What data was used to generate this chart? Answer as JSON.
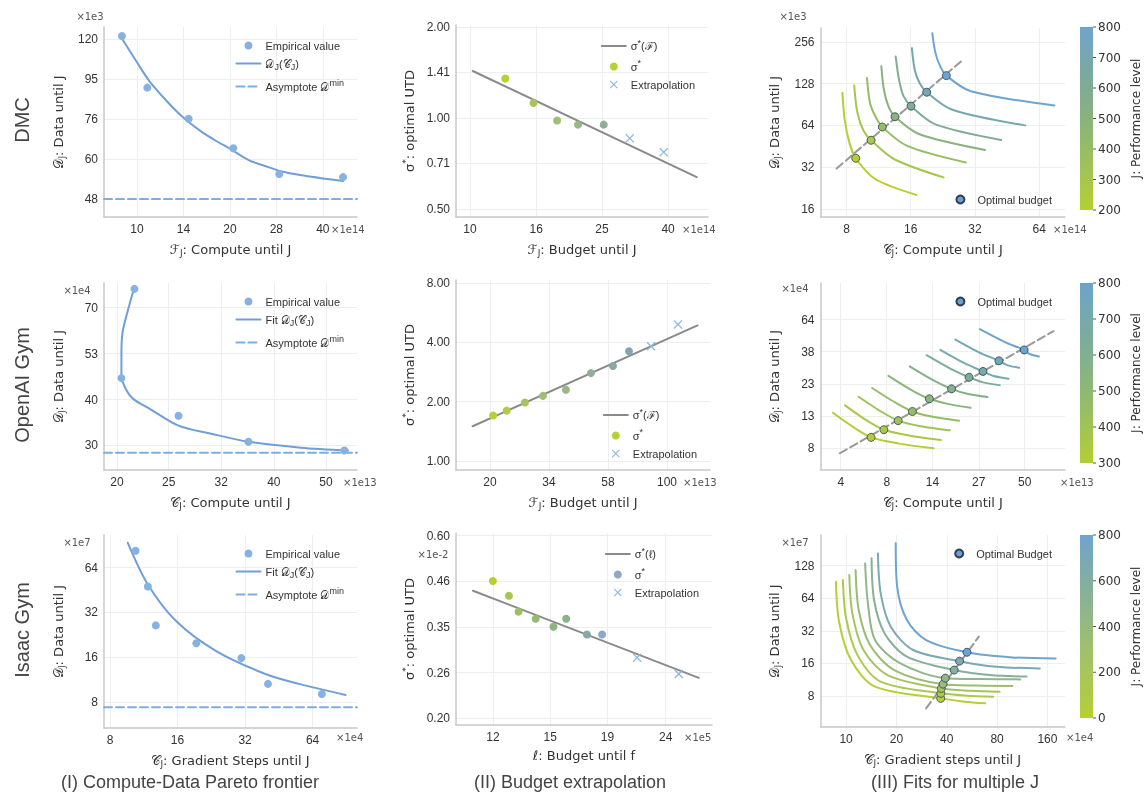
{
  "chart_data": [
    {
      "type": "scatter",
      "xlabel": "ℱ$_{J}$: Compute until J",
      "ylabel": "𝒟$_{J}$: Data until J",
      "annotations": [
        "×1e14",
        "×1e3",
        "DMC"
      ],
      "log": "xy",
      "grid": true,
      "legend": "top right",
      "xlim": [
        7.82,
        51.6
      ],
      "xticks": [
        10,
        {
          "value": 14.14,
          "label": "14"
        },
        20,
        {
          "value": 28.28,
          "label": "28"
        },
        40
      ],
      "ylim": [
        43.3,
        128.5
      ],
      "yticks": [
        48,
        {
          "value": 60.3,
          "label": "60"
        },
        {
          "value": 75.9,
          "label": "76"
        },
        {
          "value": 95.4,
          "label": "95"
        },
        120
      ],
      "series": [
        {
          "name": "Empirical value",
          "marker": "circle",
          "color": "#86b1e0",
          "x": [
            8.94,
            10.8,
            14.7,
            20.5,
            28.9,
            46.5
          ],
          "values": [
            122,
            90.8,
            76,
            64.2,
            55.4,
            54.4
          ]
        },
        {
          "name": "𝒟$_{J}$(𝒞$_{J}$)",
          "type": "line",
          "color": "#6f9fd6",
          "x": [
            8.9,
            10,
            11,
            12.5,
            14,
            16,
            18,
            20,
            23,
            26,
            30,
            35,
            40,
            46.5
          ],
          "values": [
            121,
            105,
            94,
            84,
            77,
            71,
            67,
            64,
            60,
            58,
            56,
            54.8,
            54,
            53.2
          ]
        },
        {
          "name": "Asymptote 𝒟$^{min}$",
          "type": "line",
          "line_style": "dashed",
          "color": "#7eaee0",
          "x": [
            7.82,
            51.6
          ],
          "values": [
            48,
            48
          ]
        }
      ]
    },
    {
      "type": "scatter",
      "xlabel": "ℱ$_{J}$: Budget until J",
      "ylabel": "σ$^{*}$: optimal UTD",
      "annotations": [
        "×1e14"
      ],
      "log": "xy",
      "grid": true,
      "legend": "top right",
      "xlim": [
        9.07,
        52.9
      ],
      "xticks": [
        10,
        {
          "value": 15.9,
          "label": "16"
        },
        {
          "value": 25.2,
          "label": "25"
        },
        40
      ],
      "ylim": [
        0.47,
        2.03
      ],
      "yticks": [
        {
          "value": 0.5,
          "label": "0.50"
        },
        {
          "value": 0.707,
          "label": "0.71"
        },
        {
          "value": 1,
          "label": "1.00"
        },
        {
          "value": 1.414,
          "label": "1.41"
        },
        {
          "value": 2,
          "label": "2.00"
        }
      ],
      "series": [
        {
          "name": "σ$^{*}$(ℱ)",
          "type": "line",
          "color": "#8a8a8a",
          "x": [
            10.2,
            48.9
          ],
          "values": [
            1.43,
            0.637
          ]
        },
        {
          "name": "σ$^{*}$",
          "marker": "circle",
          "color": "#b7d033",
          "colors": [
            "#b7d033",
            "#a9c559",
            "#a1bf73",
            "#98b686",
            "#8fae99"
          ],
          "x": [
            12.8,
            15.6,
            18.4,
            21.3,
            25.5
          ],
          "values": [
            1.35,
            1.12,
            0.98,
            0.95,
            0.95
          ]
        },
        {
          "name": "Extrapolation",
          "marker": "cross",
          "color": "#8fb8dc",
          "x": [
            30.6,
            38.8
          ],
          "values": [
            0.856,
            0.77
          ]
        }
      ]
    },
    {
      "type": "line",
      "xlabel": "𝒞$_{J}$: Compute until J",
      "ylabel": "𝒟$_{J}$: Data until J",
      "clabel": "J: Performance level",
      "annotations": [
        "×1e14",
        "×1e3"
      ],
      "log": "xy",
      "grid": true,
      "legend": "bottom right",
      "xlim": [
        6.04,
        84.6
      ],
      "xticks": [
        8,
        16,
        32,
        64
      ],
      "ylim": [
        14.0,
        322
      ],
      "yticks": [
        16,
        32,
        64,
        128,
        256
      ],
      "clim": [
        200,
        800
      ],
      "cticks": [
        200,
        300,
        400,
        500,
        600,
        700,
        800
      ],
      "series": [
        {
          "color": "#b5cf2f",
          "x": [
            7.65,
            7.84,
            8.25,
            8.84,
            10.9,
            17.0
          ],
          "values": [
            109.8,
            70.7,
            48.1,
            37.1,
            26.3,
            20.2
          ]
        },
        {
          "color": "#a6c64d",
          "x": [
            8.69,
            9.0,
            9.63,
            10.43,
            13.4,
            22.8
          ],
          "values": [
            123.9,
            78.9,
            58.3,
            50.0,
            36.5,
            27.0
          ]
        },
        {
          "color": "#97bc66",
          "x": [
            9.98,
            10.3,
            10.9,
            11.77,
            15.4,
            29.0
          ],
          "values": [
            140.5,
            93.1,
            74.7,
            62.3,
            45.5,
            34.6
          ]
        },
        {
          "color": "#8ab27d",
          "x": [
            11.65,
            11.97,
            12.57,
            13.5,
            17.6,
            35.7
          ],
          "values": [
            170.4,
            116,
            88.1,
            73.9,
            55.2,
            42.6
          ]
        },
        {
          "color": "#80ab94",
          "x": [
            13.6,
            14.1,
            14.8,
            16.05,
            20.9,
            42.5
          ],
          "values": [
            201,
            136.7,
            103.9,
            88.1,
            65.1,
            50.3
          ]
        },
        {
          "color": "#77a7ae",
          "x": [
            16.2,
            16.7,
            17.6,
            19.0,
            24.9,
            55.0
          ],
          "values": [
            230.6,
            161.3,
            129.4,
            111,
            83.4,
            64.0
          ]
        },
        {
          "color": "#6ea4cf",
          "x": [
            20.2,
            20.9,
            22.0,
            23.5,
            30.6,
            75.5
          ],
          "values": [
            295,
            212.3,
            170.4,
            146.1,
            112.8,
            89.1
          ]
        },
        {
          "line_style": "dashed",
          "color": "#999999",
          "x": [
            7.19,
            28.1
          ],
          "values": [
            31.3,
            190
          ]
        },
        {
          "name": "Optimal budget",
          "type": "scatter",
          "marker": "circle",
          "color": "#6d9fd0",
          "colors": [
            "#b5cf2f",
            "#a6c64d",
            "#97bc66",
            "#8ab27d",
            "#80ab94",
            "#77a7ae",
            "#6ea4cf"
          ],
          "x": [
            8.84,
            10.43,
            11.77,
            13.5,
            16.05,
            19.0,
            23.5
          ],
          "values": [
            37.1,
            50.0,
            62.3,
            73.9,
            88.1,
            111,
            146.1
          ]
        }
      ]
    },
    {
      "type": "scatter",
      "xlabel": "𝒞$_{J}$: Compute until J",
      "ylabel": "𝒟$_{J}$: Data until J",
      "annotations": [
        "×1e13",
        "×1e4",
        "OpenAI Gym"
      ],
      "log": "xy",
      "grid": true,
      "legend": "top right",
      "xlim": [
        18.9,
        57.3
      ],
      "xticks": [
        20,
        {
          "value": 25.1,
          "label": "25"
        },
        {
          "value": 31.6,
          "label": "32"
        },
        {
          "value": 39.8,
          "label": "40"
        },
        50
      ],
      "ylim": [
        25.8,
        81.5
      ],
      "yticks": [
        30,
        {
          "value": 39.8,
          "label": "40"
        },
        {
          "value": 52.8,
          "label": "53"
        },
        70
      ],
      "series": [
        {
          "name": "Empirical value",
          "marker": "circle",
          "color": "#86b1e0",
          "x": [
            21.6,
            20.4,
            26.2,
            35.6,
            54.2
          ],
          "values": [
            78.6,
            45.4,
            36.0,
            30.7,
            29.1
          ]
        },
        {
          "name": "Fit 𝒟$_{J}$(𝒞$_{J}$)",
          "type": "line",
          "color": "#6f9fd6",
          "x": [
            21.6,
            21.0,
            20.5,
            20.4,
            20.4,
            20.8,
            21.5,
            23.1,
            26.2,
            30.1,
            35.6,
            44.8,
            55.1
          ],
          "values": [
            79.5,
            69.1,
            60.1,
            52.5,
            46.5,
            42.4,
            39.9,
            37.6,
            33.9,
            32.3,
            30.7,
            29.6,
            29.1
          ]
        },
        {
          "name": "Asymptote 𝒟$^{min}$",
          "type": "line",
          "line_style": "dashed",
          "color": "#7eaee0",
          "x": [
            18.9,
            57.3
          ],
          "values": [
            28.7,
            28.7
          ]
        }
      ]
    },
    {
      "type": "scatter",
      "xlabel": "ℱ$_{J}$: Budget until J",
      "ylabel": "σ$^{*}$: optimal UTD",
      "annotations": [
        "×1e13"
      ],
      "log": "xy",
      "grid": true,
      "legend": "bottom right",
      "xlim": [
        14.7,
        147.8
      ],
      "xticks": [
        20,
        {
          "value": 34.2,
          "label": "34"
        },
        {
          "value": 58.5,
          "label": "58"
        },
        100
      ],
      "ylim": [
        0.9,
        8.28
      ],
      "yticks": [
        {
          "value": 1,
          "label": "1.00"
        },
        {
          "value": 2,
          "label": "2.00"
        },
        {
          "value": 4,
          "label": "4.00"
        },
        {
          "value": 8,
          "label": "8.00"
        }
      ],
      "series": [
        {
          "name": "σ$^{*}$(ℱ)",
          "type": "line",
          "color": "#8a8a8a",
          "x": [
            17.1,
            132
          ],
          "values": [
            1.5,
            4.87
          ]
        },
        {
          "name": "σ$^{*}$",
          "marker": "circle",
          "color": "#b8d034",
          "colors": [
            "#b8d034",
            "#b0ca4a",
            "#a7c460",
            "#a0bd72",
            "#98b784",
            "#90b094",
            "#88aaa3",
            "#82a6ae"
          ],
          "x": [
            20.6,
            23.3,
            27.5,
            32.4,
            39.9,
            50.1,
            61.2,
            70.8
          ],
          "values": [
            1.7,
            1.8,
            1.98,
            2.14,
            2.3,
            2.79,
            3.03,
            3.6
          ]
        },
        {
          "name": "Extrapolation",
          "marker": "cross",
          "color": "#8db6de",
          "x": [
            86.5,
            110.5
          ],
          "values": [
            3.82,
            4.93
          ]
        }
      ]
    },
    {
      "type": "line",
      "xlabel": "𝒞$_{J}$: Compute until J",
      "ylabel": "𝒟$_{J}$: Data until J",
      "clabel": "J: Performance level",
      "annotations": [
        "×1e13",
        "×1e4"
      ],
      "log": "xy",
      "grid": true,
      "legend": "top right",
      "xlim": [
        3.03,
        86.9
      ],
      "xticks": [
        4,
        {
          "value": 7.52,
          "label": "8"
        },
        {
          "value": 14.1,
          "label": "14"
        },
        {
          "value": 26.6,
          "label": "27"
        },
        50
      ],
      "ylim": [
        5.63,
        115.7
      ],
      "yticks": [
        8,
        {
          "value": 13.5,
          "label": "13"
        },
        {
          "value": 22.6,
          "label": "23"
        },
        {
          "value": 38.1,
          "label": "38"
        },
        64
      ],
      "clim": [
        300,
        800
      ],
      "cticks": [
        300,
        400,
        500,
        600,
        700,
        800
      ],
      "series": [
        {
          "color": "#b3ce33",
          "x": [
            3.59,
            4.79,
            6.07,
            8.77,
            14.3
          ],
          "values": [
            14.2,
            11.2,
            9.54,
            8.66,
            8.0
          ]
        },
        {
          "color": "#a9c845",
          "x": [
            4.24,
            5.68,
            7.23,
            10.2,
            15.8
          ],
          "values": [
            16.0,
            12.6,
            10.8,
            9.84,
            9.14
          ]
        },
        {
          "color": "#9fc257",
          "x": [
            5.11,
            6.89,
            8.8,
            12.0,
            17.9
          ],
          "values": [
            18.4,
            14.6,
            12.5,
            11.4,
            10.7
          ]
        },
        {
          "color": "#95bc69",
          "x": [
            6.15,
            8.35,
            10.7,
            14.1,
            20.3
          ],
          "values": [
            21.2,
            16.9,
            14.5,
            13.3,
            12.5
          ]
        },
        {
          "color": "#8bb67b",
          "x": [
            7.7,
            10.5,
            13.5,
            17.3,
            23.8
          ],
          "values": [
            25.8,
            20.6,
            17.8,
            16.4,
            15.4
          ]
        },
        {
          "color": "#84b18a",
          "x": [
            10.3,
            14.2,
            18.3,
            22.7,
            30.0
          ],
          "values": [
            30.1,
            24.1,
            20.9,
            19.3,
            18.3
          ]
        },
        {
          "color": "#7dad99",
          "x": [
            13.0,
            18.0,
            23.3,
            27.9,
            35.5
          ],
          "values": [
            36.0,
            29.0,
            25.2,
            23.3,
            22.2
          ]
        },
        {
          "color": "#77aaa8",
          "x": [
            15.7,
            21.7,
            28.2,
            32.7,
            40.0
          ],
          "values": [
            39.3,
            31.8,
            27.7,
            25.7,
            24.6
          ]
        },
        {
          "color": "#72a7b8",
          "x": [
            19.3,
            26.9,
            35.1,
            39.2,
            46.3
          ],
          "values": [
            46.4,
            37.6,
            32.9,
            30.7,
            29.4
          ]
        },
        {
          "color": "#6ca3cf",
          "x": [
            27.0,
            37.8,
            49.6,
            53.4,
            60.8
          ],
          "values": [
            54.8,
            44.7,
            39.2,
            36.7,
            35.3
          ]
        },
        {
          "line_style": "dashed",
          "color": "#999999",
          "x": [
            3.95,
            74.2
          ],
          "values": [
            7.38,
            53.1
          ]
        },
        {
          "name": "Optimal budget",
          "type": "scatter",
          "marker": "circle",
          "color": "#6d9fd0",
          "colors": [
            "#b3ce33",
            "#a9c845",
            "#9fc257",
            "#95bc69",
            "#8bb67b",
            "#84b18a",
            "#7dad99",
            "#77aaa8",
            "#72a7b8",
            "#6ca3cf"
          ],
          "x": [
            6.07,
            7.23,
            8.8,
            10.7,
            13.5,
            18.3,
            23.3,
            28.2,
            35.1,
            49.6
          ],
          "values": [
            9.54,
            10.8,
            12.5,
            14.5,
            17.8,
            20.9,
            25.2,
            27.7,
            32.9,
            39.2
          ]
        }
      ]
    },
    {
      "type": "scatter",
      "xlabel": "𝒞$_{J}$: Gradient Steps until J",
      "ylabel": "𝒟$_{J}$: Data until J",
      "annotations": [
        "×1e4",
        "×1e7",
        "Isaac Gym",
        "(I) Compute-Data Pareto frontier"
      ],
      "log": "xy",
      "grid": true,
      "legend": "top right",
      "xlim": [
        7.52,
        101
      ],
      "xticks": [
        8,
        16,
        32,
        64
      ],
      "ylim": [
        5.36,
        106
      ],
      "yticks": [
        8,
        16,
        32,
        64
      ],
      "series": [
        {
          "name": "Empirical value",
          "marker": "circle",
          "color": "#86b1e0",
          "x": [
            10.4,
            11.8,
            12.8,
            19.4,
            30.8,
            40.5,
            70.4
          ],
          "values": [
            83,
            47.8,
            26.2,
            19.9,
            15.8,
            10.6,
            9.07
          ]
        },
        {
          "name": "Fit 𝒟$_{J}$(𝒞$_{J}$)",
          "type": "line",
          "color": "#6f9fd6",
          "x": [
            9.6,
            11.8,
            15.8,
            23.8,
            39.7,
            55.6,
            89.8
          ],
          "values": [
            94,
            49.3,
            27.9,
            17.6,
            12.3,
            10.6,
            8.94
          ]
        },
        {
          "name": "Asymptote 𝒟$^{min}$",
          "type": "line",
          "line_style": "dashed",
          "color": "#7eaee0",
          "x": [
            7.52,
            101
          ],
          "values": [
            7.4,
            7.4
          ]
        }
      ]
    },
    {
      "type": "scatter",
      "xlabel": "ℓ: Budget until f",
      "ylabel": "σ$^{*}$: optimal UTD",
      "annotations": [
        "×1e5",
        "×1e-2",
        "(II) Budget extrapolation"
      ],
      "log": "xy",
      "grid": true,
      "legend": "top right",
      "xlim": [
        10.35,
        28.9
      ],
      "xticks": [
        12,
        {
          "value": 15.1,
          "label": "15"
        },
        {
          "value": 19.0,
          "label": "19"
        },
        24
      ],
      "ylim": [
        0.192,
        0.61
      ],
      "yticks": [
        {
          "value": 0.2,
          "label": "0.20"
        },
        {
          "value": 0.263,
          "label": "0.26"
        },
        {
          "value": 0.346,
          "label": "0.35"
        },
        {
          "value": 0.456,
          "label": "0.46"
        },
        {
          "value": 0.6,
          "label": "0.60"
        }
      ],
      "series": [
        {
          "name": "σ$^{*}$(ℓ)",
          "type": "line",
          "color": "#8a8a8a",
          "x": [
            11.08,
            27.4
          ],
          "values": [
            0.431,
            0.255
          ]
        },
        {
          "name": "σ$^{*}$",
          "marker": "circle",
          "color": "#8ea8c8",
          "colors": [
            "#b5cf2f",
            "#a8c64c",
            "#9dbd66",
            "#98b973",
            "#8fb384",
            "#8cb188",
            "#86a8a8",
            "#8ea8c8"
          ],
          "x": [
            12.0,
            12.8,
            13.3,
            14.25,
            15.3,
            16.1,
            17.5,
            18.6
          ],
          "values": [
            0.457,
            0.418,
            0.38,
            0.364,
            0.347,
            0.364,
            0.331,
            0.331
          ]
        },
        {
          "name": "Extrapolation",
          "marker": "cross",
          "color": "#8db6de",
          "x": [
            21.4,
            25.3
          ],
          "values": [
            0.288,
            0.261
          ]
        }
      ]
    },
    {
      "type": "line",
      "xlabel": "𝒞$_{J}$: Gradient steps until J",
      "ylabel": "𝒟$_{J}$: Data until J",
      "clabel": "J: Performance level",
      "annotations": [
        "×1e4",
        "×1e7",
        "(III) Fits for multiple J"
      ],
      "log": "xy",
      "grid": true,
      "legend": "top right",
      "xlim": [
        7.03,
        203.7
      ],
      "xticks": [
        10,
        20,
        40,
        80,
        160
      ],
      "ylim": [
        4.14,
        246
      ],
      "yticks": [
        8,
        16,
        32,
        64,
        128
      ],
      "clim": [
        0,
        800
      ],
      "cticks": [
        0,
        200,
        400,
        600,
        800
      ],
      "series": [
        {
          "color": "#b6cf34",
          "x": [
            8.69,
            9.08,
            10.7,
            14.9,
            36.8,
            51.0,
            67.9
          ],
          "values": [
            91.2,
            38.9,
            17.2,
            9.76,
            7.61,
            7.09,
            6.85
          ]
        },
        {
          "color": "#adc94c",
          "x": [
            9.57,
            10.0,
            11.7,
            16.2,
            36.9,
            53.3,
            75.8
          ],
          "values": [
            94.4,
            41.8,
            19.1,
            10.8,
            8.47,
            8.06,
            7.89
          ]
        },
        {
          "color": "#a5c461",
          "x": [
            10.45,
            10.9,
            12.7,
            17.7,
            37.1,
            55.7,
            82.8
          ],
          "values": [
            105,
            46.4,
            21.3,
            12.5,
            9.4,
            8.96,
            8.77
          ]
        },
        {
          "color": "#9bbd73",
          "x": [
            11.4,
            11.9,
            13.9,
            19.4,
            38.0,
            60.8,
            98.7
          ],
          "values": [
            117,
            49.9,
            23.7,
            13.9,
            10.3,
            10.0,
            9.9
          ]
        },
        {
          "color": "#90b689",
          "x": [
            13.0,
            13.5,
            14.9,
            21.1,
            39.2,
            63.5,
            110
          ],
          "values": [
            134,
            57.5,
            26.3,
            16.0,
            11.7,
            11.5,
            11.4
          ]
        },
        {
          "color": "#86b09b",
          "x": [
            14.2,
            14.7,
            17.0,
            23.1,
            44.3,
            72.5,
            120
          ],
          "values": [
            150,
            61.7,
            30.3,
            18.5,
            13.9,
            12.5,
            12.1
          ]
        },
        {
          "color": "#7aa9b3",
          "x": [
            15.5,
            16.1,
            18.5,
            25.2,
            47.7,
            79.2,
            144
          ],
          "values": [
            166,
            71.1,
            35.0,
            21.3,
            16.8,
            14.9,
            14.4
          ]
        },
        {
          "color": "#6ea4d0",
          "x": [
            19.8,
            20.2,
            23.1,
            30.1,
            52.8,
            98.7,
            179
          ],
          "values": [
            206,
            81.9,
            40.3,
            26.3,
            20.3,
            18.2,
            17.8
          ]
        },
        {
          "line_style": "dashed",
          "color": "#999999",
          "x": [
            30.1,
            62.2
          ],
          "values": [
            6.15,
            28.3
          ]
        },
        {
          "name": "Optimal Budget",
          "type": "scatter",
          "marker": "circle",
          "color": "#6d9fd0",
          "colors": [
            "#b6cf34",
            "#adc94c",
            "#a5c461",
            "#9bbd73",
            "#90b689",
            "#86b09b",
            "#7aa9b3",
            "#6ea4d0"
          ],
          "x": [
            36.8,
            36.9,
            37.1,
            38.0,
            39.2,
            44.3,
            47.7,
            52.8
          ],
          "values": [
            7.61,
            8.47,
            9.4,
            10.3,
            11.7,
            13.9,
            16.8,
            20.3
          ]
        }
      ]
    }
  ]
}
